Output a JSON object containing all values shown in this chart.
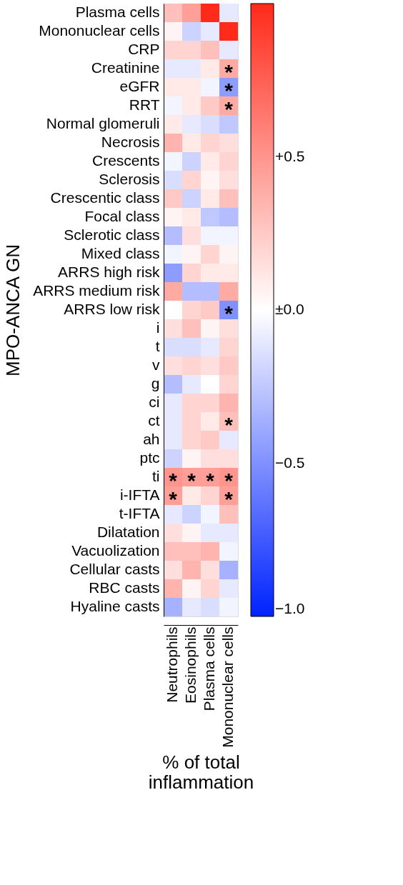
{
  "chart_data": {
    "type": "heatmap",
    "ylabel": "MPO-ANCA GN",
    "xlabel": "% of total inflammation",
    "categories": [
      "Neutrophils",
      "Eosinophils",
      "Plasma cells",
      "Mononuclear cells"
    ],
    "y_categories": [
      "Plasma cells",
      "Mononuclear cells",
      "CRP",
      "Creatinine",
      "eGFR",
      "RRT",
      "Normal glomeruli",
      "Necrosis",
      "Crescents",
      "Sclerosis",
      "Crescentic class",
      "Focal class",
      "Sclerotic class",
      "Mixed class",
      "ARRS high risk",
      "ARRS medium risk",
      "ARRS low risk",
      "i",
      "t",
      "v",
      "g",
      "ci",
      "ct",
      "ah",
      "ptc",
      "ti",
      "i-IFTA",
      "t-IFTA",
      "Dilatation",
      "Vacuolization",
      "Cellular casts",
      "RBC casts",
      "Hyaline casts"
    ],
    "cells": [
      [
        0.3,
        0.45,
        1,
        -0.1
      ],
      [
        0.05,
        -0.2,
        -0.1,
        1
      ],
      [
        0.2,
        0.2,
        0.3,
        -0.1
      ],
      [
        -0.1,
        -0.1,
        0.1,
        0.4
      ],
      [
        0.1,
        0.1,
        -0.05,
        -0.45
      ],
      [
        -0.05,
        0.1,
        0.25,
        0.4
      ],
      [
        0.1,
        -0.1,
        -0.15,
        -0.25
      ],
      [
        0.35,
        0.1,
        0.2,
        0.15
      ],
      [
        -0.05,
        -0.2,
        0.1,
        0.2
      ],
      [
        -0.15,
        0.2,
        0.05,
        0.15
      ],
      [
        0.25,
        -0.2,
        0.1,
        0.3
      ],
      [
        0.05,
        0.1,
        -0.25,
        -0.3
      ],
      [
        -0.3,
        0.15,
        -0.05,
        -0.05
      ],
      [
        -0.05,
        0.05,
        0.2,
        0.05
      ],
      [
        -0.45,
        0.2,
        0.1,
        0.1
      ],
      [
        0.4,
        -0.3,
        -0.3,
        0.4
      ],
      [
        0.0,
        0.2,
        0.25,
        -0.5
      ],
      [
        0.15,
        0.3,
        0.05,
        0.15
      ],
      [
        -0.15,
        -0.15,
        -0.1,
        0.2
      ],
      [
        0.15,
        0.2,
        0.15,
        0.25
      ],
      [
        -0.3,
        -0.1,
        0.0,
        0.2
      ],
      [
        -0.1,
        0.2,
        0.2,
        0.35
      ],
      [
        -0.1,
        0.2,
        0.1,
        0.3
      ],
      [
        -0.1,
        0.2,
        0.25,
        -0.1
      ],
      [
        -0.2,
        0.05,
        0.15,
        0.15
      ],
      [
        0.5,
        0.45,
        0.45,
        0.5
      ],
      [
        0.45,
        0.1,
        0.2,
        0.45
      ],
      [
        -0.1,
        -0.2,
        -0.05,
        0.3
      ],
      [
        0.15,
        0.05,
        -0.1,
        -0.1
      ],
      [
        0.3,
        0.3,
        0.35,
        -0.05
      ],
      [
        0.15,
        0.35,
        0.15,
        -0.35
      ],
      [
        0.35,
        0.05,
        0.2,
        -0.1
      ],
      [
        -0.35,
        -0.1,
        -0.15,
        -0.05
      ]
    ],
    "cell_labels": [
      [
        null,
        null,
        null,
        null
      ],
      [
        null,
        null,
        null,
        null
      ],
      [
        null,
        null,
        null,
        null
      ],
      [
        null,
        null,
        null,
        "*"
      ],
      [
        null,
        null,
        null,
        "*"
      ],
      [
        null,
        null,
        null,
        "*"
      ],
      [
        null,
        null,
        null,
        null
      ],
      [
        null,
        null,
        null,
        null
      ],
      [
        null,
        null,
        null,
        null
      ],
      [
        null,
        null,
        null,
        null
      ],
      [
        null,
        null,
        null,
        null
      ],
      [
        null,
        null,
        null,
        null
      ],
      [
        null,
        null,
        null,
        null
      ],
      [
        null,
        null,
        null,
        null
      ],
      [
        null,
        null,
        null,
        null
      ],
      [
        null,
        null,
        null,
        null
      ],
      [
        null,
        null,
        null,
        "*"
      ],
      [
        null,
        null,
        null,
        null
      ],
      [
        null,
        null,
        null,
        null
      ],
      [
        null,
        null,
        null,
        null
      ],
      [
        null,
        null,
        null,
        null
      ],
      [
        null,
        null,
        null,
        null
      ],
      [
        null,
        null,
        null,
        "*"
      ],
      [
        null,
        null,
        null,
        null
      ],
      [
        null,
        null,
        null,
        null
      ],
      [
        "*",
        "*",
        "*",
        "*"
      ],
      [
        "*",
        null,
        null,
        "*"
      ],
      [
        null,
        null,
        null,
        null
      ],
      [
        null,
        null,
        null,
        null
      ],
      [
        null,
        null,
        null,
        null
      ],
      [
        null,
        null,
        null,
        null
      ],
      [
        null,
        null,
        null,
        null
      ],
      [
        null,
        null,
        null,
        null
      ]
    ],
    "clim": [
      -1,
      1
    ],
    "cticks": [
      {
        "value": -1,
        "label": "−1.0"
      },
      {
        "value": -0.5,
        "label": "−0.5"
      },
      {
        "value": 0,
        "label": "±0.0"
      },
      {
        "value": 0.5,
        "label": "+0.5"
      }
    ],
    "grid": false
  }
}
